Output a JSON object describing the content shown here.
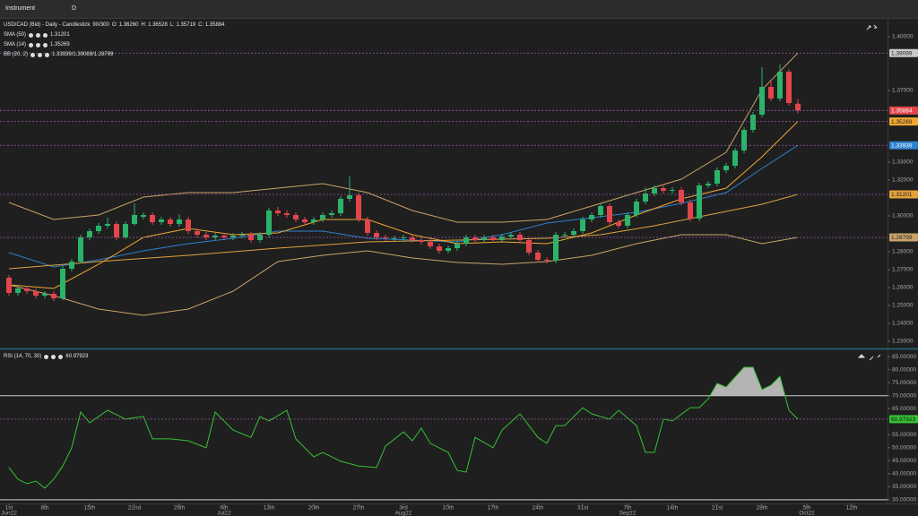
{
  "toolbar": {
    "instrument": "Instrument",
    "timeframe": "D"
  },
  "chart_data": [
    {
      "type": "candlestick",
      "title": "USD/CAD (Bid) - Daily - Candlestick",
      "header": [
        "90/300",
        "O: 1.36260",
        "H: 1.36528",
        "L: 1.35719",
        "C: 1.35884"
      ],
      "up_color": "#2bb36a",
      "down_color": "#e2464b",
      "level_line_color": "#9b59a6",
      "xlim": [
        -1,
        98
      ],
      "ylim": [
        1.2265,
        1.4095
      ],
      "yticks": [
        {
          "value": 1.23,
          "label": "1.23000"
        },
        {
          "value": 1.24,
          "label": "1.24000"
        },
        {
          "value": 1.25,
          "label": "1.25000"
        },
        {
          "value": 1.26,
          "label": "1.26000"
        },
        {
          "value": 1.27,
          "label": "1.27000"
        },
        {
          "value": 1.28,
          "label": "1.28000"
        },
        {
          "value": 1.3,
          "label": "1.30000"
        },
        {
          "value": 1.32,
          "label": "1.32000"
        },
        {
          "value": 1.33,
          "label": "1.33000"
        },
        {
          "value": 1.37,
          "label": "1.37000"
        },
        {
          "value": 1.4,
          "label": "1.40000"
        }
      ],
      "x": [
        0,
        1,
        2,
        3,
        4,
        5,
        6,
        7,
        8,
        9,
        10,
        11,
        12,
        13,
        14,
        15,
        16,
        17,
        18,
        19,
        20,
        21,
        22,
        23,
        24,
        25,
        26,
        27,
        28,
        29,
        30,
        31,
        32,
        33,
        34,
        35,
        36,
        37,
        38,
        39,
        40,
        41,
        42,
        43,
        44,
        45,
        46,
        47,
        48,
        49,
        50,
        51,
        52,
        53,
        54,
        55,
        56,
        57,
        58,
        59,
        60,
        61,
        62,
        63,
        64,
        65,
        66,
        67,
        68,
        69,
        70,
        71,
        72,
        73,
        74,
        75,
        76,
        77,
        78,
        79,
        80,
        81,
        82,
        83,
        84,
        85,
        86,
        87,
        88
      ],
      "open": [
        1.2655,
        1.257,
        1.2595,
        1.258,
        1.2555,
        1.2565,
        1.254,
        1.2705,
        1.2745,
        1.288,
        1.2915,
        1.2945,
        1.2955,
        1.288,
        1.2955,
        1.2995,
        1.3005,
        1.2965,
        1.298,
        1.2955,
        1.298,
        1.2915,
        1.2895,
        1.288,
        1.289,
        1.288,
        1.289,
        1.2895,
        1.2865,
        1.2895,
        1.303,
        1.3015,
        1.3005,
        1.298,
        1.2965,
        1.298,
        1.3005,
        1.3015,
        1.3095,
        1.3115,
        1.298,
        1.2905,
        1.288,
        1.2875,
        1.2875,
        1.288,
        1.2865,
        1.2855,
        1.283,
        1.2805,
        1.282,
        1.2845,
        1.288,
        1.2865,
        1.288,
        1.2865,
        1.2885,
        1.2895,
        1.2865,
        1.2795,
        1.2755,
        1.275,
        1.2895,
        1.2895,
        1.2915,
        1.298,
        1.3005,
        1.3055,
        1.2965,
        1.2945,
        1.3005,
        1.308,
        1.3125,
        1.3155,
        1.314,
        1.3145,
        1.3075,
        1.2985,
        1.317,
        1.318,
        1.3255,
        1.328,
        1.3365,
        1.348,
        1.3565,
        1.372,
        1.3655,
        1.3805,
        1.3626
      ],
      "high": [
        1.267,
        1.261,
        1.261,
        1.2595,
        1.258,
        1.258,
        1.272,
        1.276,
        1.2895,
        1.293,
        1.296,
        1.299,
        1.297,
        1.297,
        1.307,
        1.302,
        1.302,
        1.2995,
        1.2995,
        1.301,
        1.2995,
        1.293,
        1.291,
        1.2905,
        1.2905,
        1.2905,
        1.291,
        1.291,
        1.291,
        1.3045,
        1.305,
        1.303,
        1.302,
        1.2995,
        1.2995,
        1.302,
        1.303,
        1.311,
        1.322,
        1.313,
        1.2995,
        1.292,
        1.2895,
        1.289,
        1.2895,
        1.2895,
        1.288,
        1.287,
        1.2845,
        1.2835,
        1.286,
        1.2895,
        1.2895,
        1.2895,
        1.2895,
        1.29,
        1.291,
        1.291,
        1.288,
        1.281,
        1.277,
        1.291,
        1.291,
        1.293,
        1.2995,
        1.302,
        1.307,
        1.307,
        1.298,
        1.302,
        1.3095,
        1.316,
        1.317,
        1.317,
        1.316,
        1.316,
        1.309,
        1.3185,
        1.3195,
        1.327,
        1.3295,
        1.338,
        1.3495,
        1.358,
        1.383,
        1.376,
        1.3845,
        1.382,
        1.36528
      ],
      "low": [
        1.2555,
        1.2555,
        1.2565,
        1.254,
        1.254,
        1.2525,
        1.253,
        1.269,
        1.2735,
        1.2865,
        1.29,
        1.293,
        1.2865,
        1.287,
        1.2945,
        1.298,
        1.295,
        1.295,
        1.294,
        1.294,
        1.29,
        1.288,
        1.2865,
        1.2865,
        1.2865,
        1.2865,
        1.2875,
        1.285,
        1.285,
        1.288,
        1.3,
        1.299,
        1.2965,
        1.295,
        1.295,
        1.2965,
        1.299,
        1.3,
        1.308,
        1.2965,
        1.289,
        1.2865,
        1.286,
        1.286,
        1.286,
        1.285,
        1.284,
        1.2815,
        1.279,
        1.279,
        1.2805,
        1.283,
        1.285,
        1.285,
        1.285,
        1.285,
        1.287,
        1.285,
        1.278,
        1.274,
        1.2735,
        1.2735,
        1.288,
        1.288,
        1.29,
        1.2965,
        1.299,
        1.295,
        1.293,
        1.293,
        1.299,
        1.3065,
        1.311,
        1.3125,
        1.3125,
        1.306,
        1.297,
        1.297,
        1.3155,
        1.3165,
        1.324,
        1.3265,
        1.335,
        1.3465,
        1.355,
        1.364,
        1.364,
        1.3615,
        1.35719
      ],
      "close": [
        1.257,
        1.2595,
        1.258,
        1.2555,
        1.2565,
        1.254,
        1.2705,
        1.2745,
        1.288,
        1.2915,
        1.2945,
        1.2955,
        1.288,
        1.2955,
        1.3005,
        1.3005,
        1.2965,
        1.298,
        1.2955,
        1.298,
        1.2915,
        1.2895,
        1.288,
        1.289,
        1.288,
        1.289,
        1.2895,
        1.2865,
        1.2895,
        1.303,
        1.3015,
        1.3005,
        1.298,
        1.2965,
        1.298,
        1.3005,
        1.3015,
        1.3095,
        1.3115,
        1.298,
        1.2905,
        1.288,
        1.2875,
        1.2875,
        1.288,
        1.2865,
        1.2855,
        1.283,
        1.2805,
        1.282,
        1.2845,
        1.288,
        1.2865,
        1.288,
        1.2865,
        1.2885,
        1.2895,
        1.2865,
        1.2795,
        1.2755,
        1.275,
        1.2895,
        1.2895,
        1.2915,
        1.298,
        1.3005,
        1.3055,
        1.2965,
        1.2945,
        1.3005,
        1.308,
        1.3125,
        1.3155,
        1.314,
        1.3145,
        1.3075,
        1.2985,
        1.317,
        1.318,
        1.3255,
        1.328,
        1.3365,
        1.348,
        1.3565,
        1.372,
        1.3655,
        1.3805,
        1.363,
        1.35884
      ],
      "series": [
        {
          "name": "SMA (50)",
          "color": "#e2a23c",
          "x": [
            0,
            10,
            20,
            30,
            40,
            50,
            60,
            66,
            72,
            78,
            84,
            88
          ],
          "values": [
            1.2705,
            1.2745,
            1.278,
            1.282,
            1.2855,
            1.2865,
            1.2875,
            1.2895,
            1.2945,
            1.3005,
            1.3065,
            1.31201
          ]
        },
        {
          "name": "SMA (14)",
          "color": "#f0a830",
          "x": [
            0,
            5,
            10,
            15,
            20,
            25,
            30,
            35,
            40,
            45,
            50,
            55,
            60,
            65,
            70,
            75,
            80,
            84,
            88
          ],
          "values": [
            1.2615,
            1.2595,
            1.273,
            1.288,
            1.293,
            1.2895,
            1.2905,
            1.298,
            1.298,
            1.2895,
            1.2845,
            1.2855,
            1.2845,
            1.2905,
            1.3005,
            1.3095,
            1.3155,
            1.333,
            1.35269
          ]
        }
      ],
      "bands": {
        "name": "BB (20, 2)",
        "values_label": "1.33939/1.39089/1.28799",
        "x": [
          0,
          5,
          10,
          15,
          20,
          25,
          30,
          35,
          40,
          45,
          50,
          55,
          60,
          65,
          70,
          75,
          80,
          84,
          88
        ],
        "upper": {
          "color": "#c8a468",
          "values": [
            1.3075,
            1.298,
            1.3005,
            1.3105,
            1.313,
            1.313,
            1.3155,
            1.318,
            1.313,
            1.303,
            1.2965,
            1.2965,
            1.298,
            1.3055,
            1.313,
            1.3205,
            1.3355,
            1.3705,
            1.39089
          ]
        },
        "middle": {
          "color": "#2f80d0",
          "values": [
            1.2795,
            1.2715,
            1.2755,
            1.2805,
            1.2845,
            1.2875,
            1.2915,
            1.2915,
            1.2875,
            1.2865,
            1.2855,
            1.2895,
            1.296,
            1.299,
            1.302,
            1.307,
            1.313,
            1.3265,
            1.33939
          ]
        },
        "lower": {
          "color": "#c8a468",
          "values": [
            1.2615,
            1.2555,
            1.248,
            1.2445,
            1.248,
            1.258,
            1.2745,
            1.278,
            1.2805,
            1.2765,
            1.274,
            1.273,
            1.2745,
            1.278,
            1.2845,
            1.2895,
            1.2895,
            1.2845,
            1.28799
          ]
        }
      }
    },
    {
      "type": "line",
      "level_color": "#cfcfcf",
      "overbought_fill": "#b4b4b4",
      "levels": [
        70,
        30
      ],
      "xlim": [
        -1,
        98
      ],
      "ylim": [
        28.6,
        87.1
      ],
      "yticks": [
        {
          "value": 30,
          "label": "30.00000"
        },
        {
          "value": 35,
          "label": "35.00000"
        },
        {
          "value": 40,
          "label": "40.00000"
        },
        {
          "value": 45,
          "label": "45.00000"
        },
        {
          "value": 50,
          "label": "50.00000"
        },
        {
          "value": 55,
          "label": "55.00000"
        },
        {
          "value": 65,
          "label": "65.00000"
        },
        {
          "value": 70,
          "label": "70.00000"
        },
        {
          "value": 75,
          "label": "75.00000"
        },
        {
          "value": 80,
          "label": "80.00000"
        },
        {
          "value": 85,
          "label": "85.00000"
        }
      ],
      "xticks": [
        {
          "value": 0,
          "label": "1st"
        },
        {
          "value": 4,
          "label": "8th"
        },
        {
          "value": 9,
          "label": "15th"
        },
        {
          "value": 14,
          "label": "22nd"
        },
        {
          "value": 19,
          "label": "29th"
        },
        {
          "value": 24,
          "label": "6th"
        },
        {
          "value": 29,
          "label": "13th"
        },
        {
          "value": 34,
          "label": "20th"
        },
        {
          "value": 39,
          "label": "27th"
        },
        {
          "value": 44,
          "label": "3rd"
        },
        {
          "value": 49,
          "label": "10th"
        },
        {
          "value": 54,
          "label": "17th"
        },
        {
          "value": 59,
          "label": "24th"
        },
        {
          "value": 64,
          "label": "31st"
        },
        {
          "value": 69,
          "label": "7th"
        },
        {
          "value": 74,
          "label": "14th"
        },
        {
          "value": 79,
          "label": "21st"
        },
        {
          "value": 84,
          "label": "28th"
        },
        {
          "value": 89,
          "label": "5th"
        },
        {
          "value": 94,
          "label": "12th"
        }
      ],
      "month_ticks": [
        {
          "value": 0,
          "label": "Jun22"
        },
        {
          "value": 24,
          "label": "Jul22"
        },
        {
          "value": 44,
          "label": "Aug22"
        },
        {
          "value": 69,
          "label": "Sep22"
        },
        {
          "value": 89,
          "label": "Oct22"
        }
      ],
      "series": [
        {
          "name": "RSI (14, 70, 30)",
          "color": "#35c232",
          "x": [
            0,
            1,
            2,
            3,
            4,
            5,
            6,
            7,
            8,
            9,
            11,
            13,
            15,
            16,
            18,
            20,
            22,
            23,
            25,
            27,
            28,
            29,
            31,
            32,
            34,
            35,
            37,
            39,
            41,
            42,
            44,
            45,
            46,
            47,
            49,
            50,
            51,
            52,
            54,
            55,
            57,
            59,
            60,
            61,
            62,
            64,
            65,
            67,
            68,
            70,
            71,
            72,
            73,
            74,
            76,
            77,
            78,
            79,
            80,
            82,
            83,
            84,
            85,
            86,
            87,
            88
          ],
          "values": [
            42.4,
            37.9,
            36.2,
            37.2,
            34.5,
            38,
            43,
            50,
            63.7,
            59.6,
            64.4,
            61,
            62,
            53.4,
            53.4,
            52.7,
            50,
            63.7,
            56.8,
            54,
            62,
            60.3,
            64.4,
            53.4,
            46.5,
            48.2,
            44.8,
            43,
            42.4,
            50.6,
            56.1,
            52.7,
            57.5,
            51.7,
            48.2,
            41.3,
            40.6,
            54,
            50,
            56.8,
            63,
            54,
            51.7,
            58.5,
            58.5,
            65.4,
            63,
            61,
            64.4,
            58.5,
            48.2,
            48.2,
            61,
            60.3,
            65.4,
            65.4,
            68.8,
            74.7,
            73.3,
            80.9,
            80.9,
            72.3,
            74,
            77.4,
            64.4,
            60.97923
          ]
        }
      ]
    }
  ]
}
